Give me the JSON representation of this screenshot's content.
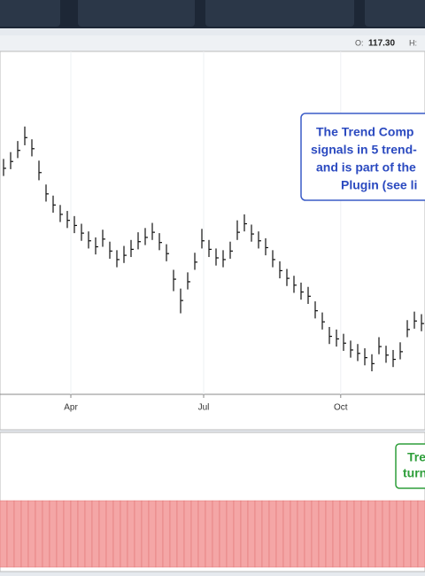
{
  "header": {
    "open_label": "O:",
    "open": "117.30",
    "high_label": "H:"
  },
  "chart_data": [
    {
      "type": "ohlc",
      "color": "#111111",
      "grid": true,
      "annotation": [
        "The Trend Comp",
        "signals in 5 trend-",
        "and is part of the",
        "Plugin (see li"
      ],
      "xlim": [
        -0.5,
        59.5
      ],
      "ylim": [
        90,
        130
      ],
      "xticks": [
        {
          "value": 9.5,
          "label": "Apr"
        },
        {
          "value": 28.25,
          "label": "Jul"
        },
        {
          "value": 47.6,
          "label": "Oct"
        }
      ],
      "close": [
        116.5,
        117.3,
        118.6,
        120.1,
        118.8,
        116.0,
        113.5,
        112.2,
        111.1,
        110.4,
        109.8,
        108.9,
        108.0,
        107.3,
        108.2,
        106.8,
        105.8,
        106.3,
        107.0,
        107.9,
        108.4,
        109.0,
        107.8,
        106.5,
        103.5,
        101.0,
        103.2,
        105.5,
        108.0,
        107.0,
        106.0,
        105.8,
        106.8,
        109.0,
        110.0,
        108.8,
        108.0,
        107.2,
        105.8,
        104.5,
        103.6,
        102.8,
        102.0,
        101.5,
        99.8,
        98.5,
        96.8,
        96.5,
        96.0,
        95.2,
        94.8,
        94.3,
        93.6,
        95.6,
        94.6,
        94.1,
        95.0,
        97.6,
        98.6,
        98.3
      ],
      "high": [
        117.6,
        118.4,
        119.7,
        121.4,
        119.9,
        117.4,
        114.6,
        113.3,
        112.2,
        111.5,
        110.9,
        110.0,
        109.1,
        108.4,
        109.3,
        107.9,
        106.9,
        107.4,
        108.1,
        109.0,
        109.5,
        110.1,
        108.9,
        107.6,
        104.6,
        102.4,
        104.3,
        106.6,
        109.4,
        108.1,
        107.1,
        106.9,
        107.9,
        110.4,
        111.1,
        109.9,
        109.1,
        108.3,
        106.9,
        105.6,
        104.7,
        103.9,
        103.1,
        102.6,
        100.9,
        99.6,
        97.9,
        97.6,
        97.1,
        96.3,
        95.9,
        95.4,
        94.7,
        96.7,
        95.7,
        95.2,
        96.1,
        98.7,
        99.7,
        99.4
      ],
      "low": [
        115.6,
        116.4,
        117.7,
        119.2,
        117.9,
        115.1,
        112.6,
        111.3,
        110.2,
        109.5,
        108.9,
        108.0,
        107.1,
        106.4,
        107.3,
        105.9,
        104.9,
        105.4,
        106.1,
        107.0,
        107.5,
        108.1,
        106.9,
        105.6,
        102.1,
        99.5,
        102.3,
        104.6,
        107.1,
        106.1,
        105.1,
        104.9,
        105.9,
        108.1,
        109.1,
        107.9,
        107.1,
        106.3,
        104.9,
        103.6,
        102.7,
        101.9,
        101.1,
        100.6,
        98.9,
        97.6,
        95.9,
        95.6,
        95.1,
        94.3,
        93.9,
        93.4,
        92.7,
        94.7,
        93.7,
        93.2,
        94.1,
        96.7,
        97.7,
        97.4
      ]
    },
    {
      "type": "bar",
      "color": "#f4a6a6",
      "ylim": [
        -5,
        5
      ],
      "xlim": [
        -0.5,
        59.5
      ],
      "annotation": [
        "Tre",
        "turn"
      ],
      "values": [
        -5,
        -5,
        -5,
        -5,
        -5,
        -5,
        -5,
        -5,
        -5,
        -5,
        -5,
        -5,
        -5,
        -5,
        -5,
        -5,
        -5,
        -5,
        -5,
        -5,
        -5,
        -5,
        -5,
        -5,
        -5,
        -5,
        -5,
        -5,
        -5,
        -5,
        -5,
        -5,
        -5,
        -5,
        -5,
        -5,
        -5,
        -5,
        -5,
        -5,
        -5,
        -5,
        -5,
        -5,
        -5,
        -5,
        -5,
        -5,
        -5,
        -5,
        -5,
        -5,
        -5,
        -5,
        -5,
        -5,
        -5,
        -5,
        -5,
        -5
      ]
    }
  ]
}
